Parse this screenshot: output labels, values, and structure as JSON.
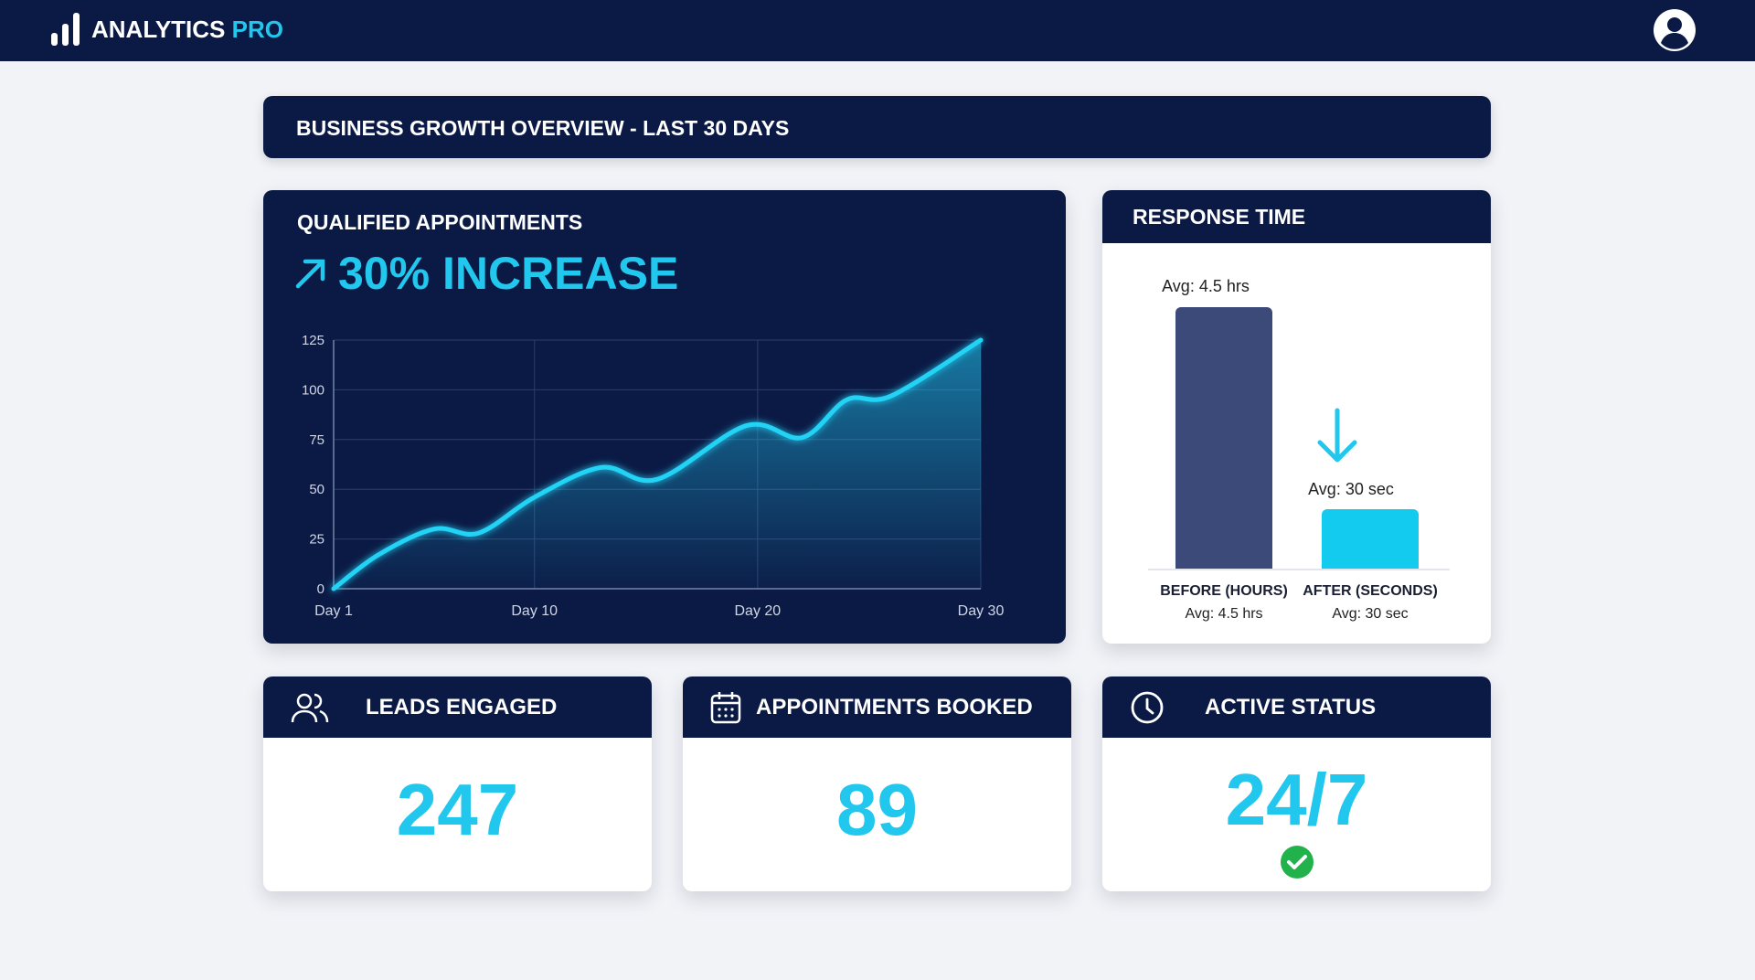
{
  "nav": {
    "brand": "ANALYTICS",
    "brand_accent": "PRO",
    "logo_icon": "bar-chart-icon",
    "profile_icon": "user-avatar-icon"
  },
  "overview_title": "BUSINESS GROWTH OVERVIEW - LAST 30 DAYS",
  "colors": {
    "navy": "#0b1a45",
    "accent": "#22c7ee",
    "before_bar": "#3b4a78",
    "success": "#22b24c"
  },
  "qualified": {
    "title": "QUALIFIED APPOINTMENTS",
    "headline": "30% INCREASE",
    "icon": "arrow-up-right-icon"
  },
  "chart_data": [
    {
      "type": "area",
      "title": "",
      "xlabel": "",
      "ylabel": "",
      "x_ticks": [
        "Day 1",
        "Day 10",
        "Day 20",
        "Day 30"
      ],
      "y_ticks": [
        0,
        25,
        50,
        75,
        100,
        125
      ],
      "ylim": [
        0,
        125
      ],
      "xlim": [
        1,
        30
      ],
      "grid": true,
      "points": [
        [
          1,
          0
        ],
        [
          3,
          17
        ],
        [
          5.5,
          30
        ],
        [
          7.5,
          28
        ],
        [
          10,
          46
        ],
        [
          13,
          61
        ],
        [
          15.5,
          55
        ],
        [
          19.5,
          82
        ],
        [
          22,
          76
        ],
        [
          24,
          95
        ],
        [
          26,
          97
        ],
        [
          30,
          125
        ]
      ]
    },
    {
      "type": "bar",
      "title": "RESPONSE TIME",
      "categories": [
        "BEFORE (HOURS)",
        "AFTER (SECONDS)"
      ],
      "labels": [
        "Avg: 4.5 hrs",
        "Avg: 30 sec"
      ],
      "values_display": [
        "4.5 hrs",
        "30 sec"
      ],
      "down_icon": "arrow-down-icon"
    }
  ],
  "stats": [
    {
      "title": "LEADS ENGAGED",
      "value": "247",
      "icon": "users-icon"
    },
    {
      "title": "APPOINTMENTS BOOKED",
      "value": "89",
      "icon": "calendar-icon"
    },
    {
      "title": "ACTIVE STATUS",
      "value": "24/7",
      "icon": "clock-icon",
      "badge_icon": "check-circle-icon"
    }
  ]
}
